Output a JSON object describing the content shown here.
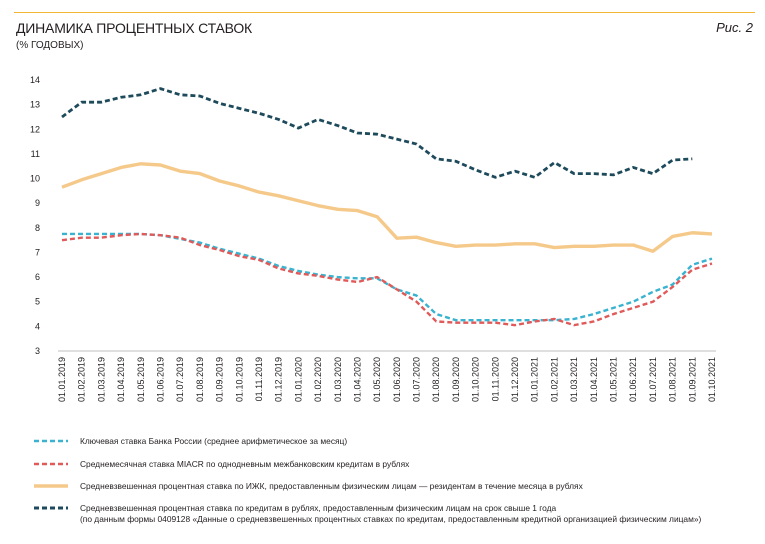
{
  "header": {
    "title": "ДИНАМИКА ПРОЦЕНТНЫХ СТАВОК",
    "subtitle": "(% ГОДОВЫХ)",
    "figure_label": "Рис. 2"
  },
  "colors": {
    "key_rate": "#3ab3d0",
    "miacr": "#e05a5a",
    "mortgage": "#f5c98a",
    "consumer": "#1e4b5c",
    "accent_rule": "#f2b632",
    "grid": "#d9d9d9"
  },
  "chart_data": {
    "type": "line",
    "title": "ДИНАМИКА ПРОЦЕНТНЫХ СТАВОК",
    "subtitle": "(% ГОДОВЫХ)",
    "xlabel": "",
    "ylabel": "",
    "ylim": [
      3,
      14
    ],
    "yticks": [
      3,
      4,
      5,
      6,
      7,
      8,
      9,
      10,
      11,
      12,
      13,
      14
    ],
    "grid": false,
    "legend_position": "bottom",
    "categories": [
      "01.01.2019",
      "01.02.2019",
      "01.03.2019",
      "01.04.2019",
      "01.05.2019",
      "01.06.2019",
      "01.07.2019",
      "01.08.2019",
      "01.09.2019",
      "01.10.2019",
      "01.11.2019",
      "01.12.2019",
      "01.01.2020",
      "01.02.2020",
      "01.03.2020",
      "01.04.2020",
      "01.05.2020",
      "01.06.2020",
      "01.07.2020",
      "01.08.2020",
      "01.09.2020",
      "01.10.2020",
      "01.11.2020",
      "01.12.2020",
      "01.01.2021",
      "01.02.2021",
      "01.03.2021",
      "01.04.2021",
      "01.05.2021",
      "01.06.2021",
      "01.07.2021",
      "01.08.2021",
      "01.09.2021",
      "01.10.2021"
    ],
    "series": [
      {
        "name": "Ключевая ставка Банка России (среднее арифметическое за месяц)",
        "style": "dashed-thin",
        "values": [
          7.75,
          7.75,
          7.75,
          7.75,
          7.75,
          7.7,
          7.55,
          7.4,
          7.15,
          6.95,
          6.75,
          6.45,
          6.25,
          6.1,
          6.0,
          5.95,
          5.95,
          5.5,
          5.25,
          4.5,
          4.25,
          4.25,
          4.25,
          4.25,
          4.25,
          4.25,
          4.3,
          4.5,
          4.75,
          5.0,
          5.4,
          5.7,
          6.5,
          6.75
        ]
      },
      {
        "name": "Среднемесячная ставка MIACR по однодневным межбанковским кредитам в рублях",
        "style": "dashed-thin",
        "values": [
          7.5,
          7.6,
          7.6,
          7.7,
          7.75,
          7.7,
          7.6,
          7.3,
          7.1,
          6.85,
          6.7,
          6.35,
          6.15,
          6.05,
          5.9,
          5.8,
          6.0,
          5.5,
          5.0,
          4.2,
          4.15,
          4.15,
          4.15,
          4.05,
          4.2,
          4.3,
          4.05,
          4.2,
          4.5,
          4.75,
          5.0,
          5.6,
          6.3,
          6.55
        ]
      },
      {
        "name": "Средневзвешенная процентная ставка по ИЖК, предоставленным физическим лицам — резидентам в течение месяца в рублях",
        "style": "solid-thick",
        "values": [
          9.65,
          9.95,
          10.2,
          10.45,
          10.6,
          10.55,
          10.3,
          10.2,
          9.9,
          9.7,
          9.45,
          9.3,
          9.1,
          8.9,
          8.75,
          8.7,
          8.45,
          7.58,
          7.62,
          7.4,
          7.25,
          7.3,
          7.3,
          7.35,
          7.35,
          7.2,
          7.25,
          7.25,
          7.3,
          7.3,
          7.05,
          7.65,
          7.8,
          7.75
        ]
      },
      {
        "name": "Средневзвешенная процентная ставка по кредитам в рублях, предоставленным физическим лицам на срок свыше 1 года",
        "name_line2": "(по данным формы 0409128 «Данные о средневзвешенных процентных ставках по кредитам, предоставленным кредитной организацией физическим лицам»)",
        "style": "dashed-thick",
        "values": [
          12.5,
          13.1,
          13.1,
          13.3,
          13.4,
          13.65,
          13.4,
          13.35,
          13.05,
          12.85,
          12.65,
          12.4,
          12.05,
          12.4,
          12.15,
          11.85,
          11.8,
          11.6,
          11.4,
          10.8,
          10.7,
          10.35,
          10.05,
          10.3,
          10.05,
          10.65,
          10.2,
          10.2,
          10.15,
          10.45,
          10.2,
          10.75,
          10.8,
          null
        ]
      }
    ]
  }
}
